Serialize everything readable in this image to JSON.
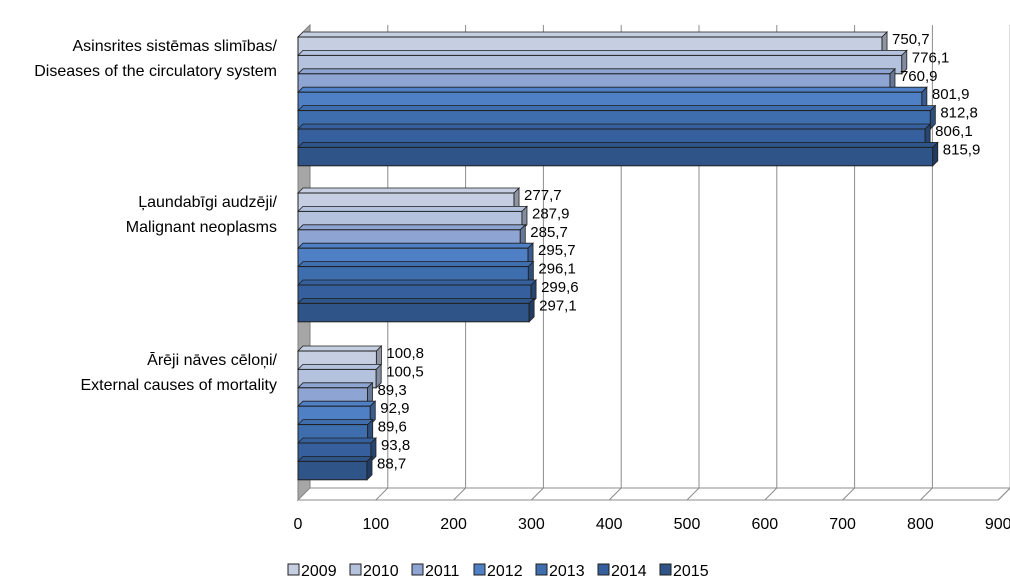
{
  "chart_data": {
    "type": "bar",
    "orientation": "horizontal",
    "style": "3d-clustered",
    "categories": [
      [
        "Asinsrites sistēmas slimības/",
        "Diseases of the circulatory system"
      ],
      [
        "Ļaundabīgi audzēji/",
        "Malignant neoplasms"
      ],
      [
        "Ārēji nāves cēloņi/",
        "External causes of mortality"
      ]
    ],
    "series": [
      {
        "name": "2009",
        "color": "#c6cfe2",
        "values": [
          750.7,
          277.7,
          100.8
        ]
      },
      {
        "name": "2010",
        "color": "#b4c2de",
        "values": [
          776.1,
          287.9,
          100.5
        ]
      },
      {
        "name": "2011",
        "color": "#8ea5d3",
        "values": [
          760.9,
          285.7,
          89.3
        ]
      },
      {
        "name": "2012",
        "color": "#4f7fc4",
        "values": [
          801.9,
          295.7,
          92.9
        ]
      },
      {
        "name": "2013",
        "color": "#3f6eae",
        "values": [
          812.8,
          296.1,
          89.6
        ]
      },
      {
        "name": "2014",
        "color": "#36609d",
        "values": [
          806.1,
          299.6,
          93.8
        ]
      },
      {
        "name": "2015",
        "color": "#2f5487",
        "values": [
          815.9,
          297.1,
          88.7
        ]
      }
    ],
    "data_labels": [
      [
        "750,7",
        "776,1",
        "760,9",
        "801,9",
        "812,8",
        "806,1",
        "815,9"
      ],
      [
        "277,7",
        "287,9",
        "285,7",
        "295,7",
        "296,1",
        "299,6",
        "297,1"
      ],
      [
        "100,8",
        "100,5",
        "89,3",
        "92,9",
        "89,6",
        "93,8",
        "88,7"
      ]
    ],
    "xlim": [
      0,
      900
    ],
    "xticks": [
      "0",
      "100",
      "200",
      "300",
      "400",
      "500",
      "600",
      "700",
      "800",
      "900"
    ],
    "grid": true,
    "legend_position": "bottom"
  }
}
